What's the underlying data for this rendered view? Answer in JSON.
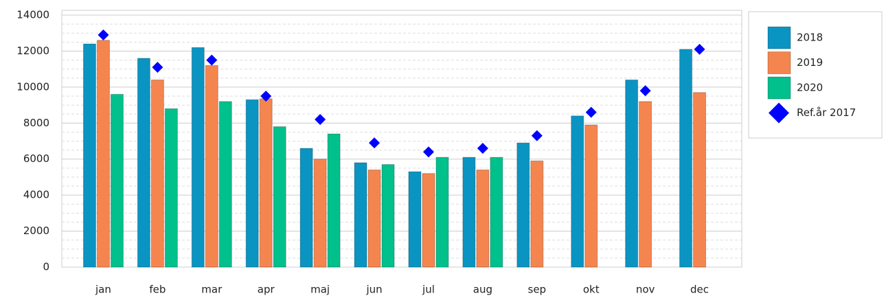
{
  "chart_data": {
    "type": "bar",
    "categories": [
      "jan",
      "feb",
      "mar",
      "apr",
      "maj",
      "jun",
      "jul",
      "aug",
      "sep",
      "okt",
      "nov",
      "dec"
    ],
    "series": [
      {
        "name": "2018",
        "color": "#0a94c2",
        "values": [
          12400,
          11600,
          12200,
          9300,
          6600,
          5800,
          5300,
          6100,
          6900,
          8400,
          10400,
          12100
        ]
      },
      {
        "name": "2019",
        "color": "#f5854e",
        "values": [
          12600,
          10400,
          11200,
          9350,
          6000,
          5400,
          5200,
          5400,
          5900,
          7900,
          9200,
          9700
        ]
      },
      {
        "name": "2020",
        "color": "#00c08c",
        "values": [
          9600,
          8800,
          9200,
          7800,
          7400,
          5700,
          6100,
          6100,
          null,
          null,
          null,
          null
        ]
      },
      {
        "name": "Ref.år 2017",
        "color": "#0000ff",
        "marker": "diamond",
        "values": [
          12900,
          11100,
          11500,
          9500,
          8200,
          6900,
          6400,
          6600,
          7300,
          8600,
          9800,
          12100
        ]
      }
    ],
    "ylim": [
      0,
      14000
    ],
    "yticks": [
      0,
      2000,
      4000,
      6000,
      8000,
      10000,
      12000,
      14000
    ],
    "grid": true,
    "legend": "right"
  }
}
